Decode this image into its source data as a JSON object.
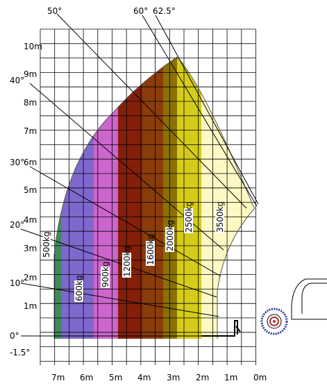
{
  "chart_data": {
    "type": "load-chart",
    "y_axis_labels": [
      "10m",
      "9m",
      "8m",
      "7m",
      "6m",
      "5m",
      "4m",
      "3m",
      "2m",
      "1m",
      "0°",
      "-1.5°"
    ],
    "x_axis_labels": [
      "7m",
      "6m",
      "5m",
      "4m",
      "3m",
      "2m",
      "1m",
      "0m"
    ],
    "angle_labels": [
      "50°",
      "60°",
      "62.5°",
      "40°",
      "30°",
      "20°",
      "10°"
    ],
    "load_zones": [
      {
        "label": "3500kg",
        "color": "#fdf8c4"
      },
      {
        "label": "2500kg",
        "color": "#d4cc1a"
      },
      {
        "label": "2000kg",
        "color": "#8a7004"
      },
      {
        "label": "1600kg",
        "color": "#8a3c0a"
      },
      {
        "label": "1200kg",
        "color": "#841f0a"
      },
      {
        "label": "900kg",
        "color": "#cc66cc"
      },
      {
        "label": "600kg",
        "color": "#7f68cc"
      },
      {
        "label": "500kg",
        "color": "#3f8a5a"
      }
    ]
  }
}
